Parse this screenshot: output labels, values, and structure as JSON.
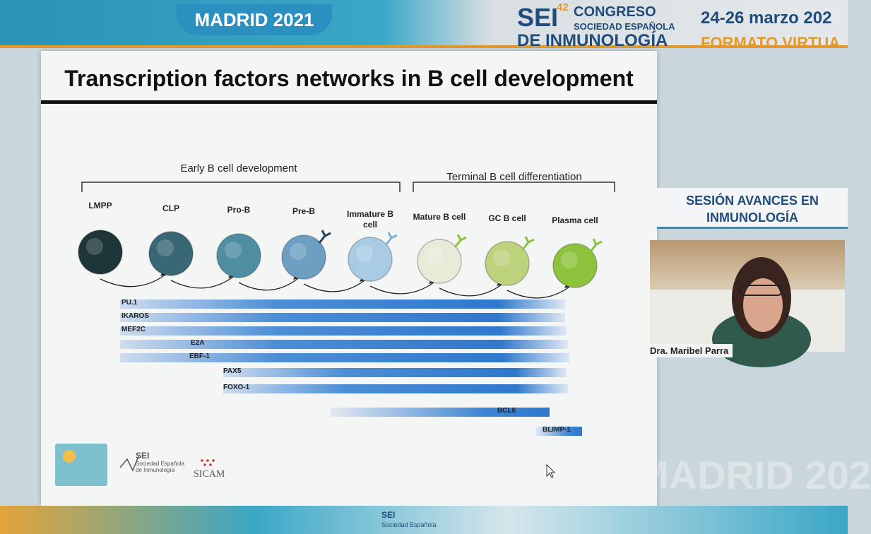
{
  "header": {
    "event": "MADRID 2021",
    "society_abbr": "SEI",
    "edition": "42",
    "congress": "CONGRESO",
    "society_line1": "SOCIEDAD ESPAÑOLA",
    "society_line2": "DE INMUNOLOGÍA",
    "dates": "24-26 marzo 202",
    "format": "FORMATO VIRTUA"
  },
  "slide": {
    "title": "Transcription factors networks in B cell development",
    "groups": [
      "Early B cell development",
      "Terminal B cell differentiation"
    ],
    "stages": [
      "LMPP",
      "CLP",
      "Pro-B",
      "Pre-B",
      "Immature B cell",
      "Mature B cell",
      "GC B cell",
      "Plasma cell"
    ],
    "factors": [
      "PU.1",
      "IKAROS",
      "MEF2C",
      "E2A",
      "EBF-1",
      "PAX5",
      "FOXO-1",
      "BCL6",
      "BLIMP-1"
    ],
    "logos": {
      "sei": "SEI",
      "sei_name": "Sociedad Española de Inmunología",
      "sicam": "SICAM"
    }
  },
  "sidebar": {
    "session": "SESIÓN AVANCES EN INMUNOLOGÍA",
    "speaker": "Dra. Maribel Parra"
  },
  "background": {
    "watermark": "MADRID 202"
  },
  "footer": {
    "sei": "SEI",
    "society": "Sociedad Española"
  }
}
